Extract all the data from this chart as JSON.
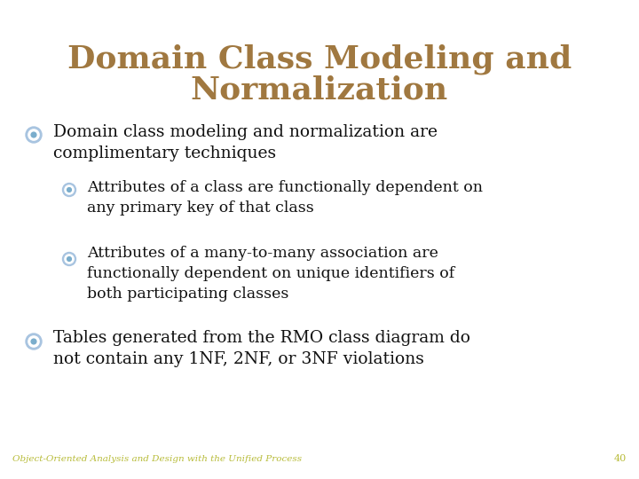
{
  "title_line1": "Domain Class Modeling and",
  "title_line2": "Normalization",
  "title_color": "#a07840",
  "background_color": "#ffffff",
  "bullet_color_outer": "#a8c4e0",
  "bullet_color_inner": "#7aadcc",
  "text_color": "#111111",
  "footer_text": "Object-Oriented Analysis and Design with the Unified Process",
  "footer_color": "#b8bc3a",
  "page_number": "40",
  "bullets": [
    {
      "level": 0,
      "text": "Domain class modeling and normalization are\ncomplimentary techniques"
    },
    {
      "level": 1,
      "text": "Attributes of a class are functionally dependent on\nany primary key of that class"
    },
    {
      "level": 1,
      "text": "Attributes of a many-to-many association are\nfunctionally dependent on unique identifiers of\nboth participating classes"
    },
    {
      "level": 0,
      "text": "Tables generated from the RMO class diagram do\nnot contain any 1NF, 2NF, or 3NF violations"
    }
  ]
}
